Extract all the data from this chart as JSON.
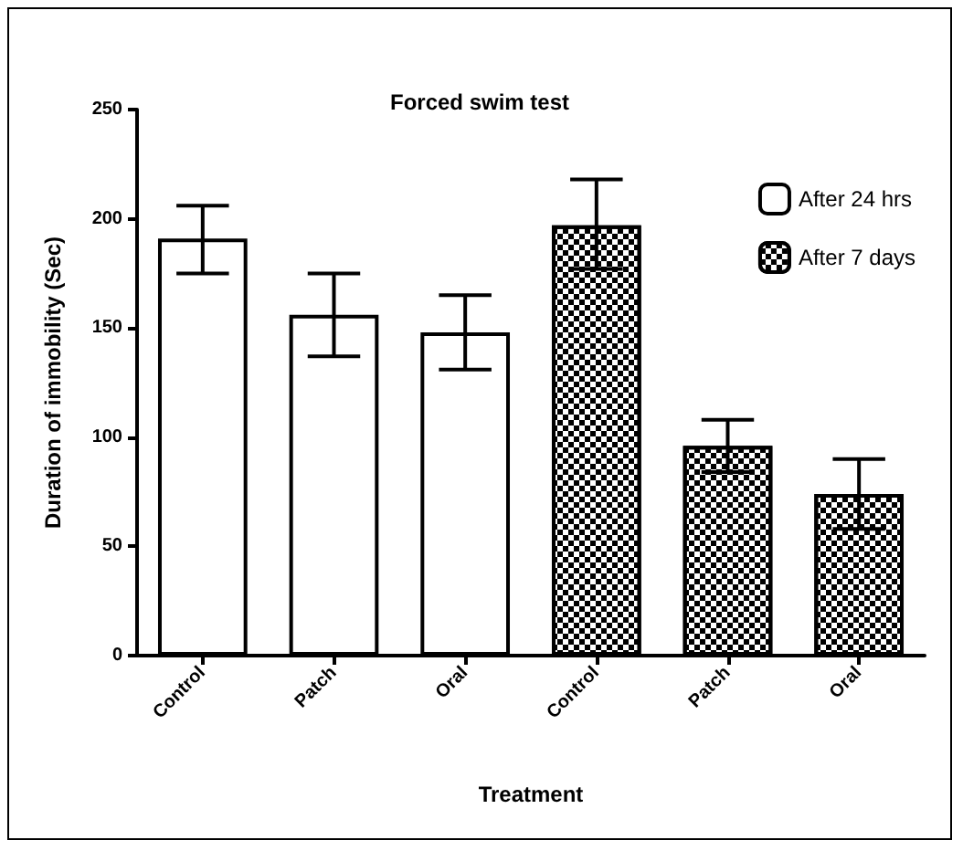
{
  "chart_data": {
    "type": "bar",
    "title": "Forced swim test",
    "xlabel": "Treatment",
    "ylabel": "Duration of immobility (Sec)",
    "categories": [
      "Control",
      "Patch",
      "Oral",
      "Control",
      "Patch",
      "Oral"
    ],
    "series": [
      {
        "name": "After 24 hrs",
        "color": "#ffffff",
        "values": [
          191,
          156,
          148,
          null,
          null,
          null
        ],
        "errors": [
          [
            175,
            206
          ],
          [
            137,
            175
          ],
          [
            131,
            165
          ],
          null,
          null,
          null
        ]
      },
      {
        "name": "After 7 days",
        "color": "#000000",
        "values": [
          null,
          null,
          null,
          197,
          96,
          74
        ],
        "errors": [
          null,
          null,
          null,
          [
            177,
            218
          ],
          [
            84,
            108
          ],
          [
            58,
            90
          ]
        ]
      }
    ],
    "ylim": [
      0,
      250
    ],
    "yticks": [
      0,
      50,
      100,
      150,
      200,
      250
    ],
    "grid": false,
    "legend": "top right"
  }
}
